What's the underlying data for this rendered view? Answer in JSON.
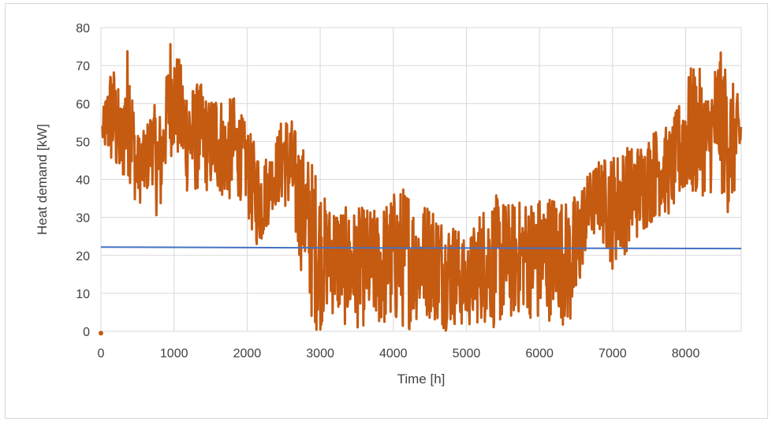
{
  "chart_data": {
    "type": "line",
    "title": "",
    "xlabel": "Time [h]",
    "ylabel": "Heat demand [kW]",
    "xlim": [
      0,
      8760
    ],
    "ylim": [
      0,
      80
    ],
    "x_ticks": [
      0,
      1000,
      2000,
      3000,
      4000,
      5000,
      6000,
      7000,
      8000
    ],
    "y_ticks": [
      0,
      10,
      20,
      30,
      40,
      50,
      60,
      70,
      80
    ],
    "grid": true,
    "legend": "none",
    "series": [
      {
        "color": "#C55A11",
        "x": [
          0,
          20,
          150,
          280,
          380,
          480,
          600,
          700,
          800,
          850,
          950,
          1050,
          1150,
          1250,
          1350,
          1480,
          1600,
          1700,
          1800,
          1950,
          2100,
          2200,
          2350,
          2500,
          2600,
          2700,
          2800,
          2900,
          3000,
          3100,
          3200,
          3400,
          3600,
          3800,
          4000,
          4200,
          4300,
          4500,
          4700,
          4850,
          5000,
          5200,
          5400,
          5600,
          5800,
          6000,
          6200,
          6400,
          6500,
          6600,
          6800,
          7000,
          7200,
          7400,
          7600,
          7800,
          8000,
          8100,
          8200,
          8300,
          8450,
          8600,
          8760
        ],
        "min": [
          -1,
          48,
          41,
          37,
          40,
          33,
          34,
          39,
          24,
          38,
          46,
          44,
          36,
          35,
          37,
          36,
          35,
          34,
          33,
          35,
          22,
          22,
          32,
          33,
          28,
          18,
          12,
          0,
          0,
          5,
          3,
          0,
          1,
          0,
          0,
          0,
          2,
          3,
          0,
          1,
          0,
          2,
          0,
          2,
          5,
          0,
          4,
          0,
          0,
          18,
          26,
          16,
          21,
          25,
          30,
          30,
          35,
          33,
          36,
          35,
          38,
          29,
          42
        ],
        "max": [
          -1,
          57,
          73,
          60,
          79,
          52,
          53,
          60,
          59,
          58,
          79,
          73,
          68,
          65,
          66,
          61,
          66,
          58,
          63,
          56,
          50,
          46,
          48,
          58,
          57,
          51,
          48,
          45,
          40,
          33,
          35,
          32,
          33,
          32,
          37,
          39,
          33,
          35,
          30,
          29,
          23,
          33,
          36,
          34,
          35,
          36,
          37,
          34,
          37,
          40,
          45,
          47,
          49,
          50,
          54,
          54,
          66,
          71,
          69,
          63,
          75,
          68,
          60
        ]
      },
      {
        "color": "#4472C4",
        "x": [
          0,
          2800,
          8760
        ],
        "values": [
          22.2,
          22.0,
          21.8
        ]
      }
    ]
  }
}
